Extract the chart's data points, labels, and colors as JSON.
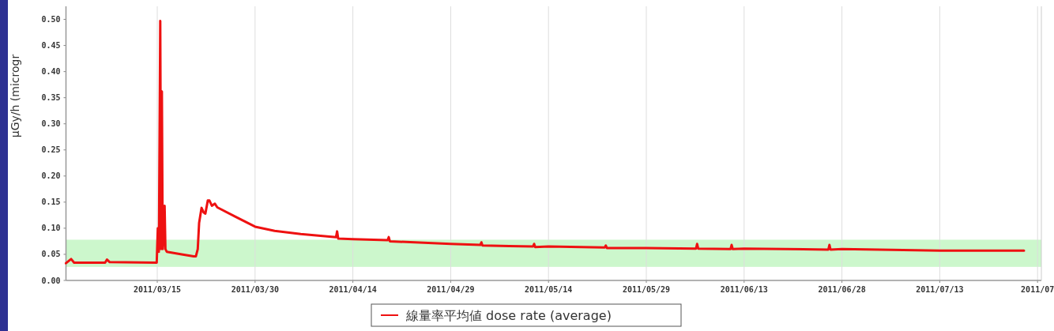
{
  "chart_data": {
    "type": "line",
    "ylabel": "µGy/h   (microgr",
    "x": [
      "2011-03-01",
      "2011-03-01T19:00",
      "2011-03-02T06:00",
      "2011-03-07",
      "2011-03-07T07:00",
      "2011-03-07T17:00",
      "2011-03-14T22:00",
      "2011-03-15T02:00",
      "2011-03-15T06:00",
      "2011-03-15T11:00",
      "2011-03-15T14:00",
      "2011-03-15T17:00",
      "2011-03-15T20:00",
      "2011-03-15T23:00",
      "2011-03-16T03:00",
      "2011-03-16T06:00",
      "2011-03-16T11:00",
      "2011-03-18T18:00",
      "2011-03-20T14:00",
      "2011-03-20T22:00",
      "2011-03-21T05:00",
      "2011-03-21T10:00",
      "2011-03-21T19:00",
      "2011-03-22T03:00",
      "2011-03-22T09:00",
      "2011-03-22T18:00",
      "2011-03-23",
      "2011-03-23T09:00",
      "2011-03-23T20:00",
      "2011-03-24T05:00",
      "2011-03-27",
      "2011-03-30",
      "2011-04-02",
      "2011-04-06",
      "2011-04-11T10:00",
      "2011-04-11T14:00",
      "2011-04-11T18:00",
      "2011-04-14",
      "2011-04-19T08:00",
      "2011-04-19T12:00",
      "2011-04-19T16:00",
      "2011-04-29",
      "2011-05-03T13:00",
      "2011-05-03T17:00",
      "2011-05-03T21:00",
      "2011-05-08",
      "2011-05-11T15:00",
      "2011-05-11T19:00",
      "2011-05-11T23:00",
      "2011-05-14",
      "2011-05-22T15:00",
      "2011-05-22T19:00",
      "2011-05-22T23:00",
      "2011-05-29",
      "2011-06-05T15:00",
      "2011-06-05T19:00",
      "2011-06-05T23:00",
      "2011-06-10T22:00",
      "2011-06-11T02:00",
      "2011-06-11T06:00",
      "2011-06-13",
      "2011-06-25T22:00",
      "2011-06-26T02:00",
      "2011-06-26T06:00",
      "2011-06-28",
      "2011-07-13",
      "2011-07-25T22:00"
    ],
    "series": [
      {
        "name": "線量率平均値 dose rate (average)",
        "color": "#ee1111",
        "values": [
          0.033,
          0.041,
          0.034,
          0.034,
          0.04,
          0.035,
          0.034,
          0.1,
          0.055,
          0.497,
          0.06,
          0.362,
          0.06,
          0.08,
          0.143,
          0.06,
          0.055,
          0.05,
          0.046,
          0.046,
          0.06,
          0.11,
          0.139,
          0.13,
          0.128,
          0.153,
          0.153,
          0.143,
          0.147,
          0.14,
          0.122,
          0.103,
          0.095,
          0.089,
          0.083,
          0.094,
          0.08,
          0.079,
          0.077,
          0.083,
          0.075,
          0.07,
          0.068,
          0.073,
          0.067,
          0.066,
          0.065,
          0.07,
          0.064,
          0.065,
          0.063,
          0.067,
          0.062,
          0.062,
          0.061,
          0.07,
          0.061,
          0.06,
          0.068,
          0.06,
          0.061,
          0.059,
          0.068,
          0.059,
          0.06,
          0.057,
          0.057
        ]
      }
    ],
    "xlim": [
      "2011-03-01",
      "2011-07-28T14:00"
    ],
    "xticks": [
      {
        "value": "2011-03-15",
        "label": "2011/03/15"
      },
      {
        "value": "2011-03-30",
        "label": "2011/03/30"
      },
      {
        "value": "2011-04-14",
        "label": "2011/04/14"
      },
      {
        "value": "2011-04-29",
        "label": "2011/04/29"
      },
      {
        "value": "2011-05-14",
        "label": "2011/05/14"
      },
      {
        "value": "2011-05-29",
        "label": "2011/05/29"
      },
      {
        "value": "2011-06-13",
        "label": "2011/06/13"
      },
      {
        "value": "2011-06-28",
        "label": "2011/06/28"
      },
      {
        "value": "2011-07-13",
        "label": "2011/07/13"
      },
      {
        "value": "2011-07-28",
        "label": "2011/07"
      }
    ],
    "ylim": [
      0,
      0.525
    ],
    "yticks": [
      {
        "value": 0,
        "label": "0.00"
      },
      {
        "value": 0.05,
        "label": "0.05"
      },
      {
        "value": 0.1,
        "label": "0.10"
      },
      {
        "value": 0.15,
        "label": "0.15"
      },
      {
        "value": 0.2,
        "label": "0.20"
      },
      {
        "value": 0.25,
        "label": "0.25"
      },
      {
        "value": 0.3,
        "label": "0.30"
      },
      {
        "value": 0.35,
        "label": "0.35"
      },
      {
        "value": 0.4,
        "label": "0.40"
      },
      {
        "value": 0.45,
        "label": "0.45"
      },
      {
        "value": 0.5,
        "label": "0.50"
      }
    ],
    "bands": [
      {
        "axis": "y",
        "from": 0.026,
        "to": 0.078,
        "color": "#ccf7cc"
      }
    ],
    "grid": "x",
    "legend": "bottom",
    "marker": "none",
    "line_style": "solid"
  }
}
